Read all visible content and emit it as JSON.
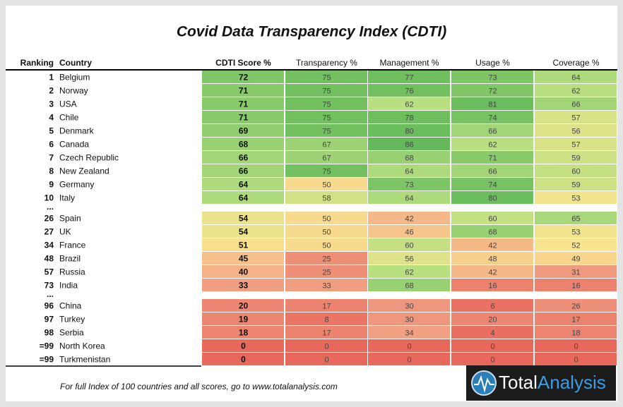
{
  "title": "Covid Data Transparency Index (CDTI)",
  "table": {
    "columns": [
      "Ranking",
      "Country",
      "CDTI Score %",
      "Transparency %",
      "Management %",
      "Usage %",
      "Coverage %"
    ],
    "rows": [
      [
        1,
        "Belgium",
        72,
        75,
        77,
        73,
        64
      ],
      [
        2,
        "Norway",
        71,
        75,
        76,
        72,
        62
      ],
      [
        3,
        "USA",
        71,
        75,
        62,
        81,
        66
      ],
      [
        4,
        "Chile",
        71,
        75,
        78,
        74,
        57
      ],
      [
        5,
        "Denmark",
        69,
        75,
        80,
        66,
        56
      ],
      [
        6,
        "Canada",
        68,
        67,
        86,
        62,
        57
      ],
      [
        7,
        "Czech Republic",
        66,
        67,
        68,
        71,
        59
      ],
      [
        8,
        "New Zealand",
        66,
        75,
        64,
        66,
        60
      ],
      [
        9,
        "Germany",
        64,
        50,
        73,
        74,
        59
      ],
      [
        10,
        "Italy",
        64,
        58,
        64,
        80,
        53
      ],
      [
        "..."
      ],
      [
        26,
        "Spain",
        54,
        50,
        42,
        60,
        65
      ],
      [
        27,
        "UK",
        54,
        50,
        46,
        68,
        53
      ],
      [
        34,
        "France",
        51,
        50,
        60,
        42,
        52
      ],
      [
        48,
        "Brazil",
        45,
        25,
        56,
        48,
        49
      ],
      [
        57,
        "Russia",
        40,
        25,
        62,
        42,
        31
      ],
      [
        73,
        "India",
        33,
        33,
        68,
        16,
        16
      ],
      [
        "..."
      ],
      [
        96,
        "China",
        20,
        17,
        30,
        6,
        26
      ],
      [
        97,
        "Turkey",
        19,
        8,
        30,
        20,
        17
      ],
      [
        98,
        "Serbia",
        18,
        17,
        34,
        4,
        18
      ],
      [
        "=99",
        "North Korea",
        0,
        0,
        0,
        0,
        0
      ],
      [
        "=99",
        "Turkmenistan",
        0,
        0,
        0,
        0,
        0
      ]
    ]
  },
  "footer": "For full Index of 100 countries and all scores, go to www.totalanalysis.com",
  "logo": {
    "part1": "Total",
    "part2": "Analysis"
  }
}
